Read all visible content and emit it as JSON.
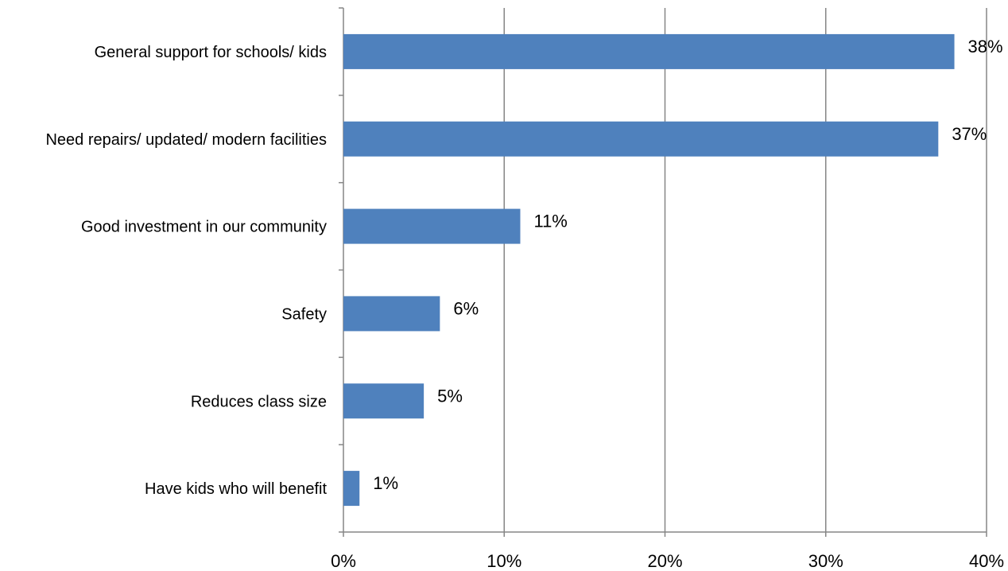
{
  "chart_data": {
    "type": "bar",
    "orientation": "horizontal",
    "title": "",
    "xlabel": "",
    "ylabel": "",
    "categories": [
      "General support for schools/ kids",
      "Need repairs/ updated/ modern facilities",
      "Good investment in our community",
      "Safety",
      "Reduces class size",
      "Have kids who will benefit"
    ],
    "values": [
      38,
      37,
      11,
      6,
      5,
      1
    ],
    "data_labels": [
      "38%",
      "37%",
      "11%",
      "6%",
      "5%",
      "1%"
    ],
    "xlim": [
      0,
      40
    ],
    "x_ticks": [
      0,
      10,
      20,
      30,
      40
    ],
    "x_tick_labels": [
      "0%",
      "10%",
      "20%",
      "30%",
      "40%"
    ],
    "grid": "vertical major gridlines",
    "legend": "none",
    "bar_color": "#4F81BD",
    "grid_color": "#868686"
  }
}
